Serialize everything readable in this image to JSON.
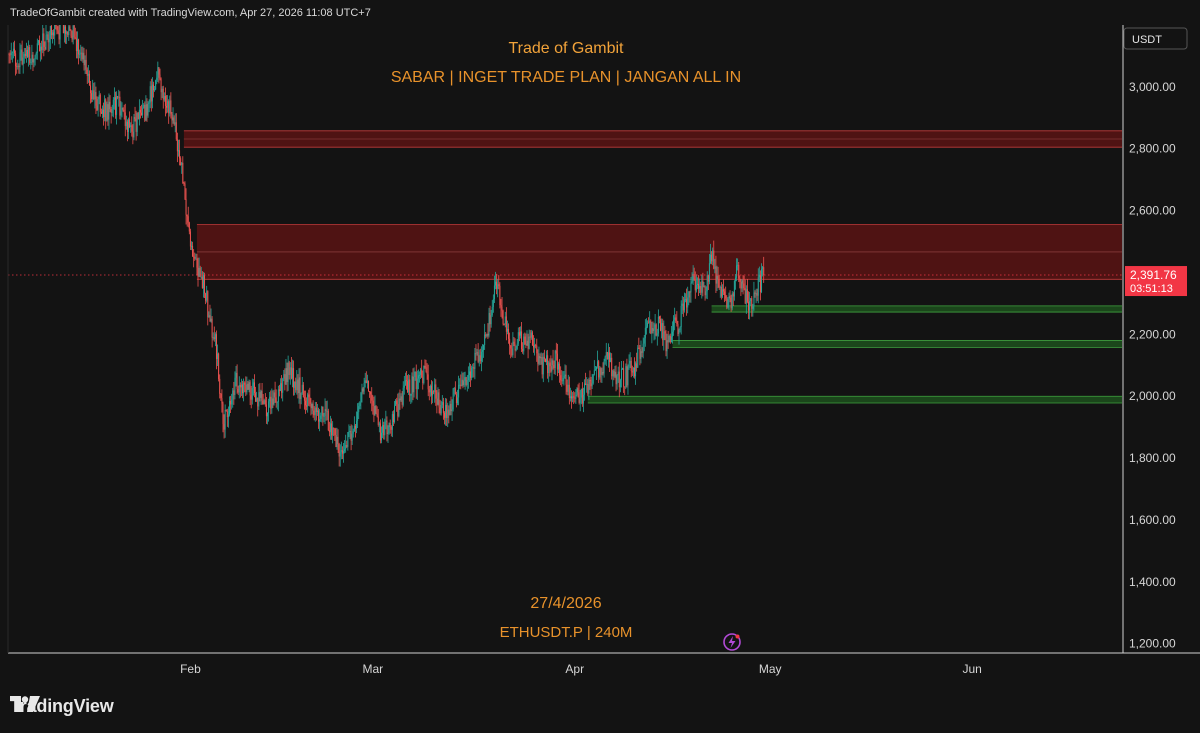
{
  "header": {
    "credit": "TradeOfGambit created with TradingView.com, Apr 27, 2026 11:08 UTC+7"
  },
  "overlay": {
    "title": "Trade of Gambit",
    "subtitle": "SABAR | INGET TRADE PLAN | JANGAN ALL IN",
    "date": "27/4/2026",
    "symbol": "ETHUSDT.P | 240M"
  },
  "footer": {
    "logo_text": "TradingView"
  },
  "colors": {
    "background": "#131313",
    "up": "#26a69a",
    "down": "#ef5350",
    "resistance_zone": "#5a1414",
    "support_zone": "#1d4d1d",
    "price_label": "#f23645",
    "overlay_text": "#e8922b"
  },
  "chart_data": {
    "type": "candlestick",
    "currency": "USDT",
    "yticks": [
      "3,000.00",
      "2,800.00",
      "2,600.00",
      "2,400.00",
      "2,200.00",
      "2,000.00",
      "1,800.00",
      "1,600.00",
      "1,400.00",
      "1,200.00"
    ],
    "ytick_values": [
      3000,
      2800,
      2600,
      2400,
      2200,
      2000,
      1800,
      1600,
      1400,
      1200
    ],
    "ylim": [
      1170,
      3200
    ],
    "xticks": [
      "Feb",
      "Mar",
      "Apr",
      "May",
      "Jun"
    ],
    "xtick_dates": [
      "2026-02-01",
      "2026-03-01",
      "2026-04-01",
      "2026-05-01",
      "2026-06-01"
    ],
    "xlim": [
      "2026-01-04",
      "2026-06-24"
    ],
    "last_price": "2,391.76",
    "last_price_value": 2391.76,
    "countdown": "03:51:13",
    "resistance_zones": [
      {
        "from": 2805,
        "to": 2858
      },
      {
        "from": 2378,
        "to": 2555
      }
    ],
    "support_zones": [
      {
        "from": 2272,
        "to": 2292
      },
      {
        "from": 2158,
        "to": 2180
      },
      {
        "from": 1978,
        "to": 2000
      }
    ],
    "path": [
      [
        "2026-01-04",
        3090
      ],
      [
        "2026-01-08",
        3110
      ],
      [
        "2026-01-11",
        3180
      ],
      [
        "2026-01-13",
        3200
      ],
      [
        "2026-01-15",
        3130
      ],
      [
        "2026-01-17",
        2980
      ],
      [
        "2026-01-19",
        2920
      ],
      [
        "2026-01-21",
        2940
      ],
      [
        "2026-01-23",
        2860
      ],
      [
        "2026-01-25",
        2920
      ],
      [
        "2026-01-27",
        3040
      ],
      [
        "2026-01-29",
        2920
      ],
      [
        "2026-01-30",
        2820
      ],
      [
        "2026-01-31",
        2680
      ],
      [
        "2026-02-01",
        2500
      ],
      [
        "2026-02-03",
        2360
      ],
      [
        "2026-02-05",
        2150
      ],
      [
        "2026-02-06",
        1900
      ],
      [
        "2026-02-08",
        2050
      ],
      [
        "2026-02-10",
        2030
      ],
      [
        "2026-02-13",
        1960
      ],
      [
        "2026-02-16",
        2080
      ],
      [
        "2026-02-19",
        1990
      ],
      [
        "2026-02-22",
        1920
      ],
      [
        "2026-02-24",
        1830
      ],
      [
        "2026-02-26",
        1900
      ],
      [
        "2026-02-28",
        2060
      ],
      [
        "2026-03-02",
        1880
      ],
      [
        "2026-03-04",
        1930
      ],
      [
        "2026-03-06",
        2020
      ],
      [
        "2026-03-09",
        2070
      ],
      [
        "2026-03-12",
        1950
      ],
      [
        "2026-03-15",
        2050
      ],
      [
        "2026-03-18",
        2150
      ],
      [
        "2026-03-20",
        2360
      ],
      [
        "2026-03-22",
        2160
      ],
      [
        "2026-03-25",
        2190
      ],
      [
        "2026-03-27",
        2100
      ],
      [
        "2026-03-29",
        2120
      ],
      [
        "2026-03-31",
        2010
      ],
      [
        "2026-04-02",
        1990
      ],
      [
        "2026-04-04",
        2080
      ],
      [
        "2026-04-06",
        2120
      ],
      [
        "2026-04-08",
        2050
      ],
      [
        "2026-04-10",
        2090
      ],
      [
        "2026-04-12",
        2200
      ],
      [
        "2026-04-14",
        2240
      ],
      [
        "2026-04-15",
        2180
      ],
      [
        "2026-04-17",
        2240
      ],
      [
        "2026-04-18",
        2300
      ],
      [
        "2026-04-19",
        2380
      ],
      [
        "2026-04-21",
        2340
      ],
      [
        "2026-04-22",
        2460
      ],
      [
        "2026-04-23",
        2360
      ],
      [
        "2026-04-25",
        2300
      ],
      [
        "2026-04-26",
        2420
      ],
      [
        "2026-04-27",
        2320
      ],
      [
        "2026-04-28",
        2300
      ],
      [
        "2026-04-29",
        2350
      ],
      [
        "2026-04-30",
        2392
      ]
    ]
  }
}
